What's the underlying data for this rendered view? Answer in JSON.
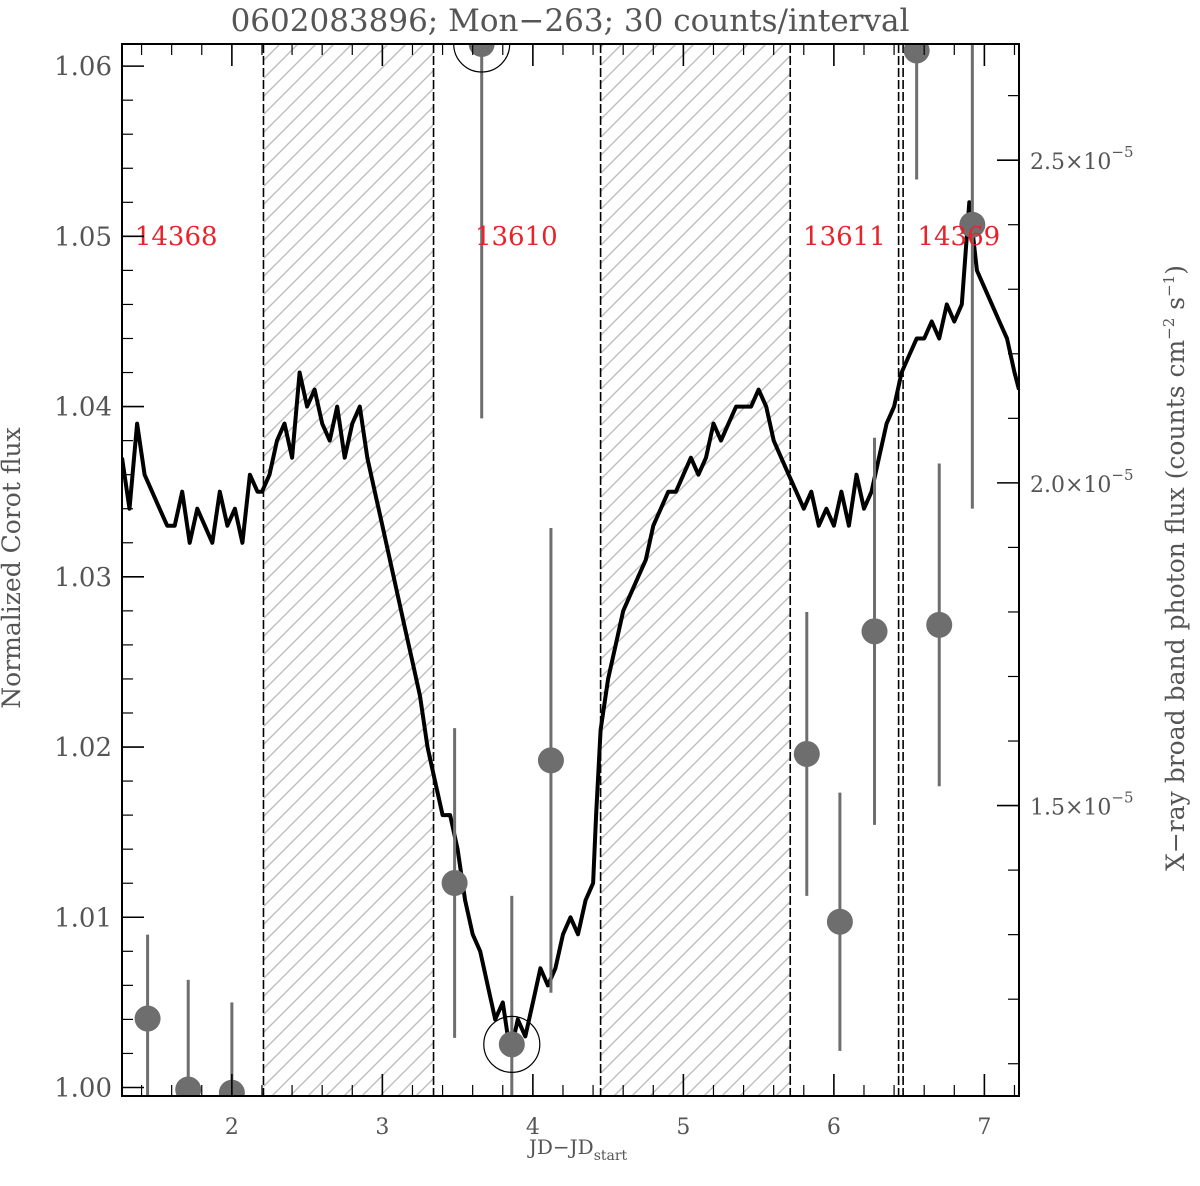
{
  "chart_data": {
    "type": "line",
    "title": "0602083896; Mon−263; 30 counts/interval",
    "xlabel": "JD−JD",
    "xlabel_subscript": "start",
    "ylabel": "Normalized Corot flux",
    "y2label": "X−ray broad band photon flux (counts cm",
    "y2label_parts": [
      "X−ray broad band photon flux (counts cm",
      "−2",
      " s",
      "−1",
      ")"
    ],
    "xlim": [
      1.27,
      7.23
    ],
    "ylim": [
      0.9995,
      1.0613
    ],
    "y2lim": [
      1.05e-05,
      2.68e-05
    ],
    "xticks": [
      2,
      3,
      4,
      5,
      6,
      7
    ],
    "yticks": [
      1.0,
      1.01,
      1.02,
      1.03,
      1.04,
      1.05,
      1.06
    ],
    "ytick_labels": [
      "1.00",
      "1.01",
      "1.02",
      "1.03",
      "1.04",
      "1.05",
      "1.06"
    ],
    "y2ticks": [
      1.5e-05,
      2e-05,
      2.5e-05
    ],
    "y2tick_labels": [
      {
        "mantissa": "1.5×10",
        "exponent": "−5"
      },
      {
        "mantissa": "2.0×10",
        "exponent": "−5"
      },
      {
        "mantissa": "2.5×10",
        "exponent": "−5"
      }
    ],
    "grid": false,
    "hatched_intervals": [
      [
        2.21,
        3.34
      ],
      [
        4.45,
        5.71
      ]
    ],
    "observation_boundaries": [
      2.21,
      3.34,
      4.45,
      5.71,
      6.43,
      6.46
    ],
    "observation_labels": [
      {
        "text": "14368",
        "x": 1.63,
        "y": 1.0495
      },
      {
        "text": "13610",
        "x": 3.89,
        "y": 1.0495
      },
      {
        "text": "13611",
        "x": 6.07,
        "y": 1.0495
      },
      {
        "text": "14369",
        "x": 6.83,
        "y": 1.0495
      }
    ],
    "colors": {
      "optical": "#000000",
      "xray": "#6e6e6e",
      "labels": "#e8232a",
      "hatch": "#bdbdbd",
      "axes": "#000000"
    },
    "series": [
      {
        "name": "Corot",
        "axis": "left",
        "x": [
          1.27,
          1.32,
          1.37,
          1.42,
          1.47,
          1.52,
          1.57,
          1.62,
          1.67,
          1.72,
          1.77,
          1.82,
          1.87,
          1.92,
          1.97,
          2.02,
          2.07,
          2.12,
          2.17,
          2.2,
          2.25,
          2.3,
          2.35,
          2.4,
          2.45,
          2.5,
          2.55,
          2.6,
          2.65,
          2.7,
          2.75,
          2.8,
          2.85,
          2.9,
          2.95,
          3.0,
          3.05,
          3.1,
          3.15,
          3.2,
          3.25,
          3.3,
          3.35,
          3.4,
          3.45,
          3.5,
          3.55,
          3.6,
          3.65,
          3.7,
          3.75,
          3.8,
          3.85,
          3.9,
          3.95,
          4.0,
          4.05,
          4.1,
          4.15,
          4.2,
          4.25,
          4.3,
          4.35,
          4.4,
          4.42,
          4.45,
          4.5,
          4.55,
          4.6,
          4.65,
          4.7,
          4.75,
          4.8,
          4.85,
          4.9,
          4.95,
          5.0,
          5.05,
          5.1,
          5.15,
          5.2,
          5.25,
          5.3,
          5.35,
          5.4,
          5.45,
          5.5,
          5.55,
          5.6,
          5.65,
          5.7,
          5.75,
          5.8,
          5.85,
          5.9,
          5.95,
          6.0,
          6.05,
          6.1,
          6.15,
          6.2,
          6.25,
          6.3,
          6.35,
          6.4,
          6.45,
          6.5,
          6.55,
          6.6,
          6.65,
          6.7,
          6.75,
          6.8,
          6.85,
          6.9,
          6.95,
          7.0,
          7.05,
          7.1,
          7.15,
          7.2,
          7.23
        ],
        "y": [
          1.037,
          1.034,
          1.039,
          1.036,
          1.035,
          1.034,
          1.033,
          1.033,
          1.035,
          1.032,
          1.034,
          1.033,
          1.032,
          1.035,
          1.033,
          1.034,
          1.032,
          1.036,
          1.035,
          1.035,
          1.036,
          1.038,
          1.039,
          1.037,
          1.042,
          1.04,
          1.041,
          1.039,
          1.038,
          1.04,
          1.037,
          1.039,
          1.04,
          1.037,
          1.035,
          1.033,
          1.031,
          1.029,
          1.027,
          1.025,
          1.023,
          1.02,
          1.018,
          1.016,
          1.016,
          1.014,
          1.011,
          1.009,
          1.008,
          1.006,
          1.004,
          1.005,
          1.002,
          1.004,
          1.003,
          1.005,
          1.007,
          1.006,
          1.007,
          1.009,
          1.01,
          1.009,
          1.011,
          1.012,
          1.016,
          1.021,
          1.024,
          1.026,
          1.028,
          1.029,
          1.03,
          1.031,
          1.033,
          1.034,
          1.035,
          1.035,
          1.036,
          1.037,
          1.036,
          1.037,
          1.039,
          1.038,
          1.039,
          1.04,
          1.04,
          1.04,
          1.041,
          1.04,
          1.038,
          1.037,
          1.036,
          1.035,
          1.034,
          1.035,
          1.033,
          1.034,
          1.033,
          1.035,
          1.033,
          1.036,
          1.034,
          1.035,
          1.037,
          1.039,
          1.04,
          1.042,
          1.043,
          1.044,
          1.044,
          1.045,
          1.044,
          1.046,
          1.045,
          1.046,
          1.052,
          1.048,
          1.047,
          1.046,
          1.045,
          1.044,
          1.042,
          1.041
        ]
      },
      {
        "name": "X-ray",
        "axis": "right",
        "x": [
          1.44,
          1.71,
          2.0,
          3.48,
          3.66,
          3.86,
          4.12,
          5.82,
          6.04,
          6.27,
          6.55,
          6.7,
          6.92
        ],
        "y": [
          1.17e-05,
          1.06e-05,
          1.055e-05,
          1.38e-05,
          2.68e-05,
          1.13e-05,
          1.57e-05,
          1.58e-05,
          1.32e-05,
          1.77e-05,
          2.67e-05,
          1.78e-05,
          2.4e-05
        ],
        "err": [
          1.3e-06,
          1.7e-06,
          1.4e-06,
          2.4e-06,
          5.8e-06,
          2.3e-06,
          3.6e-06,
          2.2e-06,
          2e-06,
          3e-06,
          2e-06,
          2.5e-06,
          4.4e-06
        ],
        "circled": [
          false,
          false,
          false,
          false,
          true,
          true,
          false,
          false,
          false,
          false,
          false,
          false,
          false
        ]
      }
    ]
  }
}
